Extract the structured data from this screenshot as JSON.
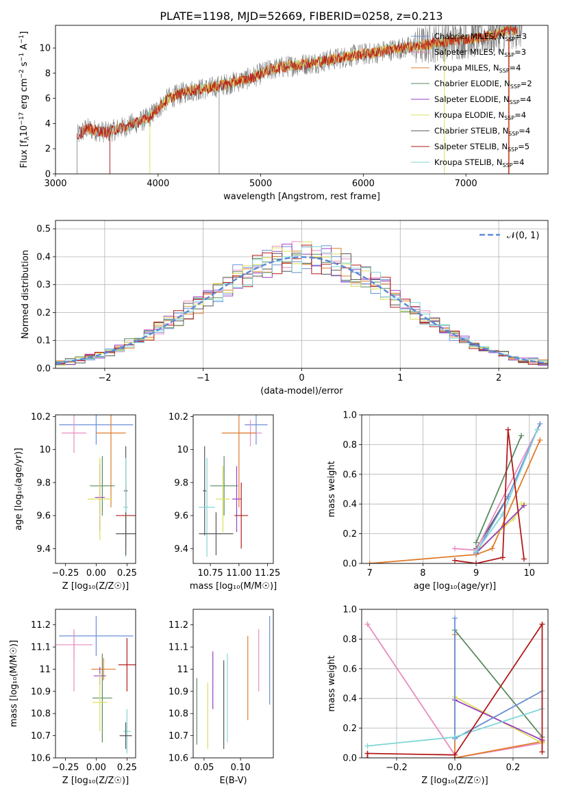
{
  "figure": {
    "title": "PLATE=1198, MJD=52669, FIBERID=0258, z=0.213"
  },
  "series": [
    {
      "key": "chabrier_miles",
      "label": "Chabrier MILES, N",
      "n": "=3",
      "color": "#6a8fd8"
    },
    {
      "key": "salpeter_miles",
      "label": "Salpeter MILES, N",
      "n": "=3",
      "color": "#e88cbf"
    },
    {
      "key": "kroupa_miles",
      "label": "Kroupa MILES, N",
      "n": "=4",
      "color": "#e07b2a"
    },
    {
      "key": "chabrier_elodie",
      "label": "Chabrier ELODIE, N",
      "n": "=2",
      "color": "#5a8a5e"
    },
    {
      "key": "salpeter_elodie",
      "label": "Salpeter ELODIE, N",
      "n": "=4",
      "color": "#9a3fc0"
    },
    {
      "key": "kroupa_elodie",
      "label": "Kroupa ELODIE, N",
      "n": "=4",
      "color": "#d9e05a"
    },
    {
      "key": "chabrier_stelib",
      "label": "Chabrier STELIB, N",
      "n": "=4",
      "color": "#555555"
    },
    {
      "key": "salpeter_stelib",
      "label": "Salpeter STELIB, N",
      "n": "=5",
      "color": "#b21a1a"
    },
    {
      "key": "kroupa_stelib",
      "label": "Kroupa STELIB, N",
      "n": "=4",
      "color": "#7fd6d6"
    }
  ],
  "subscript_ssp": "SSP",
  "chart_data": [
    {
      "id": "spectrum",
      "type": "line",
      "xlabel": "wavelength [Angstrom, rest frame]",
      "ylabel_parts": {
        "pre": "Flux [f",
        "sub": "λ",
        "mid": "10",
        "sup": "−17",
        "post": " erg cm",
        "sup2": "−2",
        "post2": " s",
        "sup3": "−1",
        "post3": " A",
        "sup4": "−1",
        "end": "]"
      },
      "xlim": [
        3000,
        7800
      ],
      "ylim": [
        0,
        11.8
      ],
      "xticks": [
        3000,
        4000,
        5000,
        6000,
        7000
      ],
      "yticks": [
        0,
        2,
        4,
        6,
        8,
        10
      ],
      "grid": false,
      "legend": "upper right",
      "continuum": [
        [
          3210,
          3.0
        ],
        [
          3300,
          3.6
        ],
        [
          3500,
          3.3
        ],
        [
          3700,
          3.8
        ],
        [
          3900,
          4.4
        ],
        [
          4000,
          5.2
        ],
        [
          4100,
          6.0
        ],
        [
          4300,
          6.6
        ],
        [
          4500,
          6.8
        ],
        [
          4700,
          7.2
        ],
        [
          4900,
          7.6
        ],
        [
          5100,
          8.3
        ],
        [
          5300,
          8.6
        ],
        [
          5500,
          8.8
        ],
        [
          5700,
          9.1
        ],
        [
          5900,
          9.4
        ],
        [
          6100,
          9.6
        ],
        [
          6300,
          9.9
        ],
        [
          6500,
          10.1
        ],
        [
          6700,
          10.4
        ],
        [
          6900,
          10.6
        ],
        [
          7100,
          10.8
        ],
        [
          7300,
          11.1
        ],
        [
          7400,
          11.4
        ],
        [
          7560,
          11.5
        ]
      ]
    },
    {
      "id": "residuals",
      "type": "step",
      "xlabel": "(data-model)/error",
      "ylabel": "Normed distribution",
      "xlim": [
        -2.5,
        2.5
      ],
      "ylim": [
        0,
        0.53
      ],
      "xticks": [
        -2,
        -1,
        0,
        1,
        2
      ],
      "yticks": [
        0.0,
        0.1,
        0.2,
        0.3,
        0.4,
        0.5
      ],
      "grid": true,
      "legend": "upper right",
      "gaussian_label": "𝒩(0, 1)",
      "gaussian_color": "#5b8ad6",
      "bin_width": 0.1
    },
    {
      "id": "age_vs_Z",
      "type": "errorbar",
      "xlabel": "Z [log₁₀(Z/Z☉)]",
      "ylabel": "age  [log₁₀(age/yr)]",
      "xlim": [
        -0.33,
        0.32
      ],
      "ylim": [
        9.31,
        10.21
      ],
      "xticks": [
        -0.25,
        0.0,
        0.25
      ],
      "xticklabels": [
        "−0.25",
        "0.00",
        "0.25"
      ],
      "yticks": [
        9.4,
        9.6,
        9.8,
        10.0,
        10.2
      ],
      "points": [
        {
          "s": "chabrier_miles",
          "x": 0.0,
          "xe": 0.3,
          "y": 10.15,
          "ye": 0.12
        },
        {
          "s": "salpeter_miles",
          "x": -0.18,
          "xe": 0.1,
          "y": 10.1,
          "ye": 0.12
        },
        {
          "s": "kroupa_miles",
          "x": 0.12,
          "xe": 0.12,
          "y": 10.1,
          "ye": 0.45
        },
        {
          "s": "chabrier_elodie",
          "x": 0.05,
          "xe": 0.1,
          "y": 9.78,
          "ye": 0.18
        },
        {
          "s": "salpeter_elodie",
          "x": 0.03,
          "xe": 0.04,
          "y": 9.71,
          "ye": 0.2
        },
        {
          "s": "kroupa_elodie",
          "x": 0.03,
          "xe": 0.1,
          "y": 9.7,
          "ye": 0.25
        },
        {
          "s": "chabrier_stelib",
          "x": 0.24,
          "xe": 0.015,
          "y": 9.75,
          "ye": 0.27
        },
        {
          "s": "salpeter_stelib",
          "x": 0.24,
          "xe": 0.08,
          "y": 9.6,
          "ye": 0.2
        },
        {
          "s": "kroupa_stelib",
          "x": 0.24,
          "xe": 0.02,
          "y": 9.65,
          "ye": 0.3
        },
        {
          "s": "chabrier_stelib",
          "x": 0.24,
          "xe": 0.08,
          "y": 9.49,
          "ye": 0.13
        }
      ]
    },
    {
      "id": "age_vs_mass",
      "type": "errorbar",
      "xlabel": "mass [log₁₀(M/M☉)]",
      "ylabel": "",
      "xlim": [
        10.6,
        11.3
      ],
      "ylim": [
        9.31,
        10.21
      ],
      "xticks": [
        10.75,
        11.0,
        11.25
      ],
      "xticklabels": [
        "10.75",
        "11.00",
        "11.25"
      ],
      "yticks": [
        9.4,
        9.6,
        9.8,
        10.0,
        10.2
      ],
      "points": [
        {
          "s": "chabrier_miles",
          "x": 11.15,
          "xe": 0.1,
          "y": 10.15,
          "ye": 0.12
        },
        {
          "s": "salpeter_miles",
          "x": 11.1,
          "xe": 0.1,
          "y": 10.1,
          "ye": 0.08
        },
        {
          "s": "kroupa_miles",
          "x": 11.0,
          "xe": 0.15,
          "y": 10.1,
          "ye": 0.45
        },
        {
          "s": "chabrier_elodie",
          "x": 10.87,
          "xe": 0.12,
          "y": 9.78,
          "ye": 0.18
        },
        {
          "s": "salpeter_elodie",
          "x": 10.98,
          "xe": 0.04,
          "y": 9.7,
          "ye": 0.2
        },
        {
          "s": "kroupa_elodie",
          "x": 10.86,
          "xe": 0.06,
          "y": 9.7,
          "ye": 0.2
        },
        {
          "s": "chabrier_stelib",
          "x": 10.7,
          "xe": 0.015,
          "y": 9.75,
          "ye": 0.27
        },
        {
          "s": "salpeter_stelib",
          "x": 11.02,
          "xe": 0.06,
          "y": 9.6,
          "ye": 0.2
        },
        {
          "s": "kroupa_stelib",
          "x": 10.72,
          "xe": 0.07,
          "y": 9.65,
          "ye": 0.3
        },
        {
          "s": "chabrier_stelib",
          "x": 10.8,
          "xe": 0.15,
          "y": 9.49,
          "ye": 0.13
        }
      ]
    },
    {
      "id": "weight_vs_age",
      "type": "line",
      "xlabel": "age  [log₁₀(age/yr)]",
      "ylabel": "mass weight",
      "xlim": [
        6.85,
        10.35
      ],
      "ylim": [
        0,
        1
      ],
      "xticks": [
        7,
        8,
        9,
        10
      ],
      "yticks": [
        0.0,
        0.2,
        0.4,
        0.6,
        0.8,
        1.0
      ],
      "grid": true,
      "lines": [
        {
          "s": "kroupa_miles",
          "pts": [
            [
              7.0,
              0.0
            ],
            [
              9.0,
              0.06
            ],
            [
              9.3,
              0.1
            ],
            [
              10.2,
              0.83
            ]
          ]
        },
        {
          "s": "chabrier_elodie",
          "pts": [
            [
              9.0,
              0.14
            ],
            [
              9.85,
              0.86
            ]
          ]
        },
        {
          "s": "kroupa_elodie",
          "pts": [
            [
              9.0,
              0.08
            ],
            [
              9.7,
              0.3
            ],
            [
              9.9,
              0.4
            ],
            [
              9.85,
              0.4
            ]
          ]
        },
        {
          "s": "salpeter_elodie",
          "pts": [
            [
              9.0,
              0.07
            ],
            [
              9.9,
              0.39
            ]
          ]
        },
        {
          "s": "chabrier_stelib",
          "pts": [
            [
              9.0,
              0.1
            ],
            [
              9.6,
              0.45
            ]
          ]
        },
        {
          "s": "salpeter_miles",
          "pts": [
            [
              8.6,
              0.1
            ],
            [
              9.0,
              0.09
            ],
            [
              10.15,
              0.9
            ]
          ]
        },
        {
          "s": "chabrier_miles",
          "pts": [
            [
              9.0,
              0.07
            ],
            [
              9.6,
              0.45
            ],
            [
              10.2,
              0.94
            ]
          ]
        },
        {
          "s": "kroupa_stelib",
          "pts": [
            [
              9.0,
              0.08
            ],
            [
              9.5,
              0.33
            ],
            [
              10.15,
              0.9
            ]
          ]
        },
        {
          "s": "salpeter_stelib",
          "pts": [
            [
              8.6,
              0.02
            ],
            [
              9.0,
              0.0
            ],
            [
              9.5,
              0.04
            ],
            [
              9.6,
              0.9
            ],
            [
              9.9,
              0.03
            ]
          ]
        }
      ]
    },
    {
      "id": "mass_vs_Z",
      "type": "errorbar",
      "xlabel": "Z [log₁₀(Z/Z☉)]",
      "ylabel": "mass [log₁₀(M/M☉)]",
      "xlim": [
        -0.33,
        0.32
      ],
      "ylim": [
        10.6,
        11.27
      ],
      "xticks": [
        -0.25,
        0.0,
        0.25
      ],
      "xticklabels": [
        "−0.25",
        "0.00",
        "0.25"
      ],
      "yticks": [
        10.6,
        10.7,
        10.8,
        10.9,
        11.0,
        11.1,
        11.2
      ],
      "points": [
        {
          "s": "chabrier_miles",
          "x": 0.0,
          "xe": 0.3,
          "y": 11.15,
          "ye": 0.09
        },
        {
          "s": "salpeter_miles",
          "x": -0.18,
          "xe": 0.15,
          "y": 11.11,
          "ye": 0.06
        },
        {
          "s": "salpeter_miles",
          "x": -0.18,
          "xe": 0.0,
          "y": 11.04,
          "ye": 0.14
        },
        {
          "s": "kroupa_miles",
          "x": 0.06,
          "xe": 0.1,
          "y": 11.0,
          "ye": 0.05
        },
        {
          "s": "salpeter_stelib",
          "x": 0.25,
          "xe": 0.07,
          "y": 11.02,
          "ye": 0.12
        },
        {
          "s": "salpeter_elodie",
          "x": 0.03,
          "xe": 0.05,
          "y": 10.97,
          "ye": 0.04
        },
        {
          "s": "chabrier_elodie",
          "x": 0.05,
          "xe": 0.08,
          "y": 10.87,
          "ye": 0.2
        },
        {
          "s": "kroupa_elodie",
          "x": 0.03,
          "xe": 0.06,
          "y": 10.85,
          "ye": 0.13
        },
        {
          "s": "kroupa_stelib",
          "x": 0.25,
          "xe": 0.03,
          "y": 10.72,
          "ye": 0.1
        },
        {
          "s": "chabrier_stelib",
          "x": 0.24,
          "xe": 0.05,
          "y": 10.7,
          "ye": 0.06
        }
      ]
    },
    {
      "id": "mass_vs_ebv",
      "type": "errorbar",
      "xlabel": "E(B-V)",
      "ylabel": "",
      "xlim": [
        0.035,
        0.145
      ],
      "ylim": [
        10.6,
        11.27
      ],
      "xticks": [
        0.05,
        0.1
      ],
      "xticklabels": [
        "0.05",
        "0.10"
      ],
      "yticks": [
        10.6,
        10.7,
        10.8,
        10.9,
        11.0,
        11.1,
        11.2
      ],
      "points": [
        {
          "s": "chabrier_elodie",
          "x": 0.04,
          "xe": 0,
          "y": 10.81,
          "ye": 0.15
        },
        {
          "s": "kroupa_elodie",
          "x": 0.055,
          "xe": 0,
          "y": 10.79,
          "ye": 0.15
        },
        {
          "s": "salpeter_elodie",
          "x": 0.062,
          "xe": 0,
          "y": 10.95,
          "ye": 0.13
        },
        {
          "s": "chabrier_stelib",
          "x": 0.077,
          "xe": 0,
          "y": 10.84,
          "ye": 0.2
        },
        {
          "s": "kroupa_stelib",
          "x": 0.082,
          "xe": 0,
          "y": 10.87,
          "ye": 0.2
        },
        {
          "s": "kroupa_miles",
          "x": 0.11,
          "xe": 0,
          "y": 10.96,
          "ye": 0.19
        },
        {
          "s": "salpeter_miles",
          "x": 0.125,
          "xe": 0,
          "y": 11.04,
          "ye": 0.14
        },
        {
          "s": "chabrier_miles",
          "x": 0.14,
          "xe": 0,
          "y": 11.04,
          "ye": 0.2
        }
      ]
    },
    {
      "id": "weight_vs_Z",
      "type": "line",
      "xlabel": "Z [log₁₀(Z/Z☉)]",
      "ylabel": "mass weight",
      "xlim": [
        -0.32,
        0.32
      ],
      "ylim": [
        0,
        1
      ],
      "xticks": [
        -0.2,
        0.0,
        0.2
      ],
      "xticklabels": [
        "−0.2",
        "0.0",
        "0.2"
      ],
      "yticks": [
        0.0,
        0.2,
        0.4,
        0.6,
        0.8,
        1.0
      ],
      "grid": true,
      "lines": [
        {
          "s": "salpeter_miles",
          "pts": [
            [
              -0.3,
              0.9
            ],
            [
              0.0,
              0.02
            ],
            [
              0.0,
              0.0
            ],
            [
              0.3,
              0.1
            ]
          ]
        },
        {
          "s": "kroupa_miles",
          "pts": [
            [
              0.0,
              0.83
            ],
            [
              0.0,
              0.0
            ],
            [
              0.3,
              0.11
            ]
          ]
        },
        {
          "s": "chabrier_elodie",
          "pts": [
            [
              0.0,
              0.86
            ],
            [
              0.3,
              0.14
            ]
          ]
        },
        {
          "s": "kroupa_elodie",
          "pts": [
            [
              0.0,
              0.41
            ],
            [
              0.3,
              0.1
            ]
          ]
        },
        {
          "s": "salpeter_elodie",
          "pts": [
            [
              0.0,
              0.39
            ],
            [
              0.3,
              0.12
            ]
          ]
        },
        {
          "s": "chabrier_miles",
          "pts": [
            [
              0.0,
              0.94
            ],
            [
              0.0,
              0.13
            ],
            [
              0.3,
              0.45
            ]
          ]
        },
        {
          "s": "kroupa_stelib",
          "pts": [
            [
              -0.3,
              0.08
            ],
            [
              0.0,
              0.14
            ],
            [
              0.3,
              0.33
            ],
            [
              0.3,
              0.45
            ]
          ]
        },
        {
          "s": "salpeter_stelib",
          "pts": [
            [
              -0.3,
              0.03
            ],
            [
              -0.3,
              0.0
            ],
            [
              -0.3,
              0.03
            ],
            [
              0.0,
              0.02
            ],
            [
              0.3,
              0.9
            ],
            [
              0.3,
              0.04
            ]
          ]
        }
      ]
    }
  ]
}
